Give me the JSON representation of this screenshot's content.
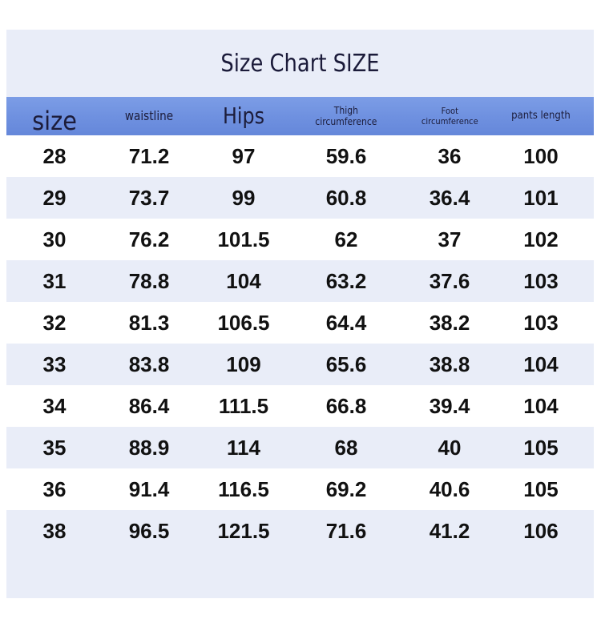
{
  "title": "Size Chart SIZE",
  "headers": {
    "size": "size",
    "waistline": "waistline",
    "hips": "Hips",
    "thigh_line1": "Thigh",
    "thigh_line2": "circumference",
    "foot_line1": "Foot",
    "foot_line2": "circumference",
    "pants_length": "pants length"
  },
  "colors": {
    "header_bg": "#6f91e0",
    "row_alt": "#e9edf8",
    "row_white": "#ffffff",
    "text": "#111111"
  },
  "rows": [
    [
      "28",
      "71.2",
      "97",
      "59.6",
      "36",
      "100"
    ],
    [
      "29",
      "73.7",
      "99",
      "60.8",
      "36.4",
      "101"
    ],
    [
      "30",
      "76.2",
      "101.5",
      "62",
      "37",
      "102"
    ],
    [
      "31",
      "78.8",
      "104",
      "63.2",
      "37.6",
      "103"
    ],
    [
      "32",
      "81.3",
      "106.5",
      "64.4",
      "38.2",
      "103"
    ],
    [
      "33",
      "83.8",
      "109",
      "65.6",
      "38.8",
      "104"
    ],
    [
      "34",
      "86.4",
      "111.5",
      "66.8",
      "39.4",
      "104"
    ],
    [
      "35",
      "88.9",
      "114",
      "68",
      "40",
      "105"
    ],
    [
      "36",
      "91.4",
      "116.5",
      "69.2",
      "40.6",
      "105"
    ],
    [
      "38",
      "96.5",
      "121.5",
      "71.6",
      "41.2",
      "106"
    ]
  ]
}
